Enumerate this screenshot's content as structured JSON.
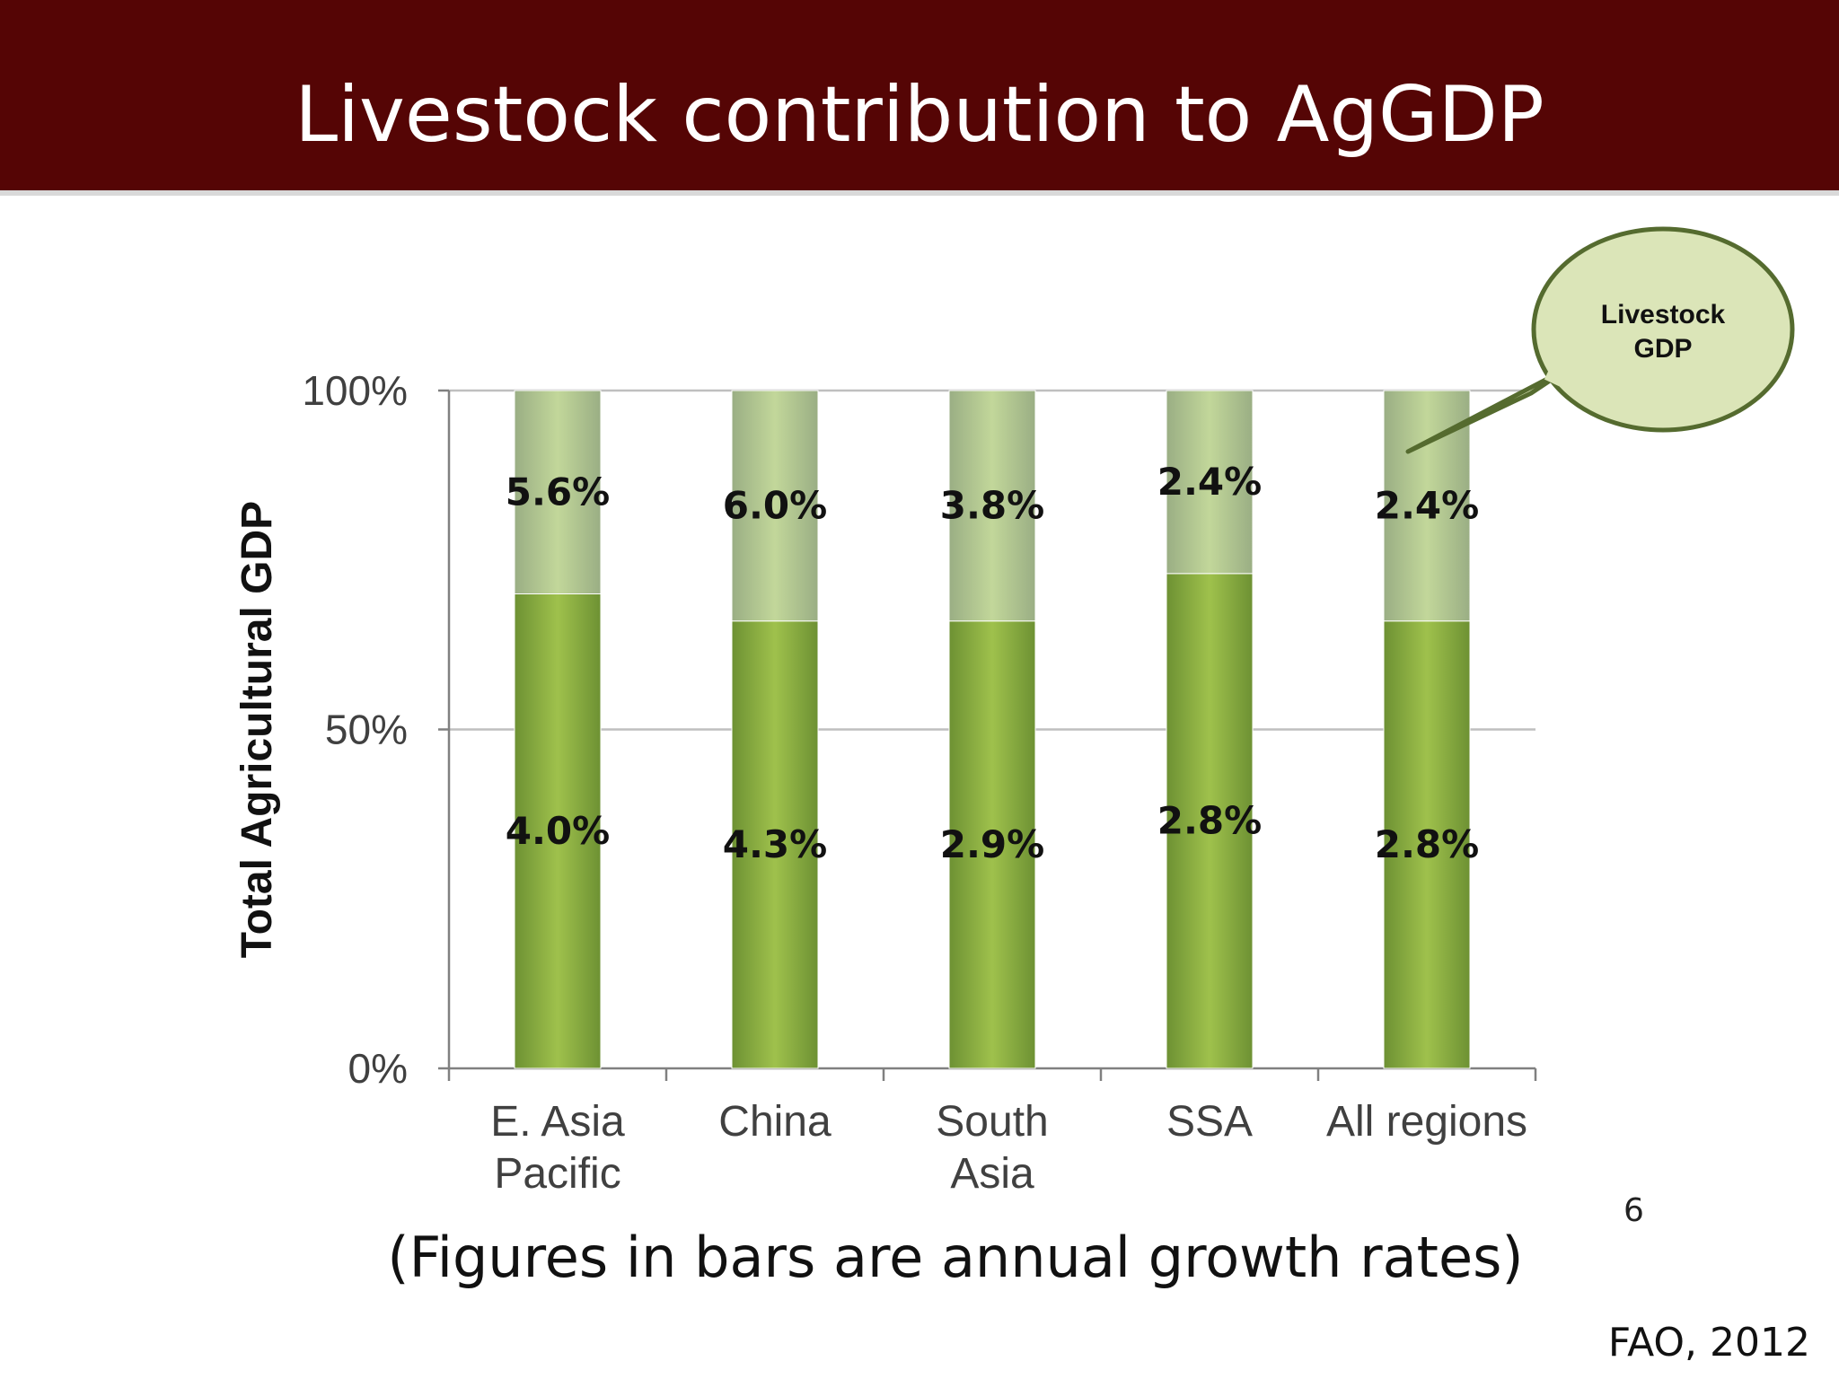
{
  "slide": {
    "title": "Livestock contribution to AgGDP",
    "caption": "(Figures in bars are annual growth rates)",
    "page_number": "6",
    "source": "FAO, 2012"
  },
  "callout": {
    "line1": "Livestock",
    "line2": "GDP"
  },
  "colors": {
    "header": "#550505",
    "livestock": "#c2d79a",
    "livestock_dark": "#9aae84",
    "crop": "#9fc14c",
    "crop_dark": "#6d9133",
    "callout_fill": "#dbe5b8",
    "callout_stroke": "#556b2f"
  },
  "chart_data": {
    "type": "bar",
    "stacked": true,
    "ylabel": "Total Agricultural GDP",
    "ylim": [
      0,
      100
    ],
    "y_ticks": [
      {
        "value": 0,
        "label": "0%"
      },
      {
        "value": 50,
        "label": "50%"
      },
      {
        "value": 100,
        "label": "100%"
      }
    ],
    "categories": [
      [
        "E. Asia",
        "Pacific"
      ],
      [
        "China"
      ],
      [
        "South",
        "Asia"
      ],
      [
        "SSA"
      ],
      [
        "All regions"
      ]
    ],
    "series": [
      {
        "key": "crop",
        "values": [
          70,
          66,
          66,
          73,
          66
        ],
        "labels": [
          "4.0%",
          "4.3%",
          "2.9%",
          "2.8%",
          "2.8%"
        ]
      },
      {
        "key": "livestock",
        "values": [
          30,
          34,
          34,
          27,
          34
        ],
        "labels": [
          "5.6%",
          "6.0%",
          "3.8%",
          "2.4%",
          "2.4%"
        ]
      }
    ],
    "grid": true
  }
}
